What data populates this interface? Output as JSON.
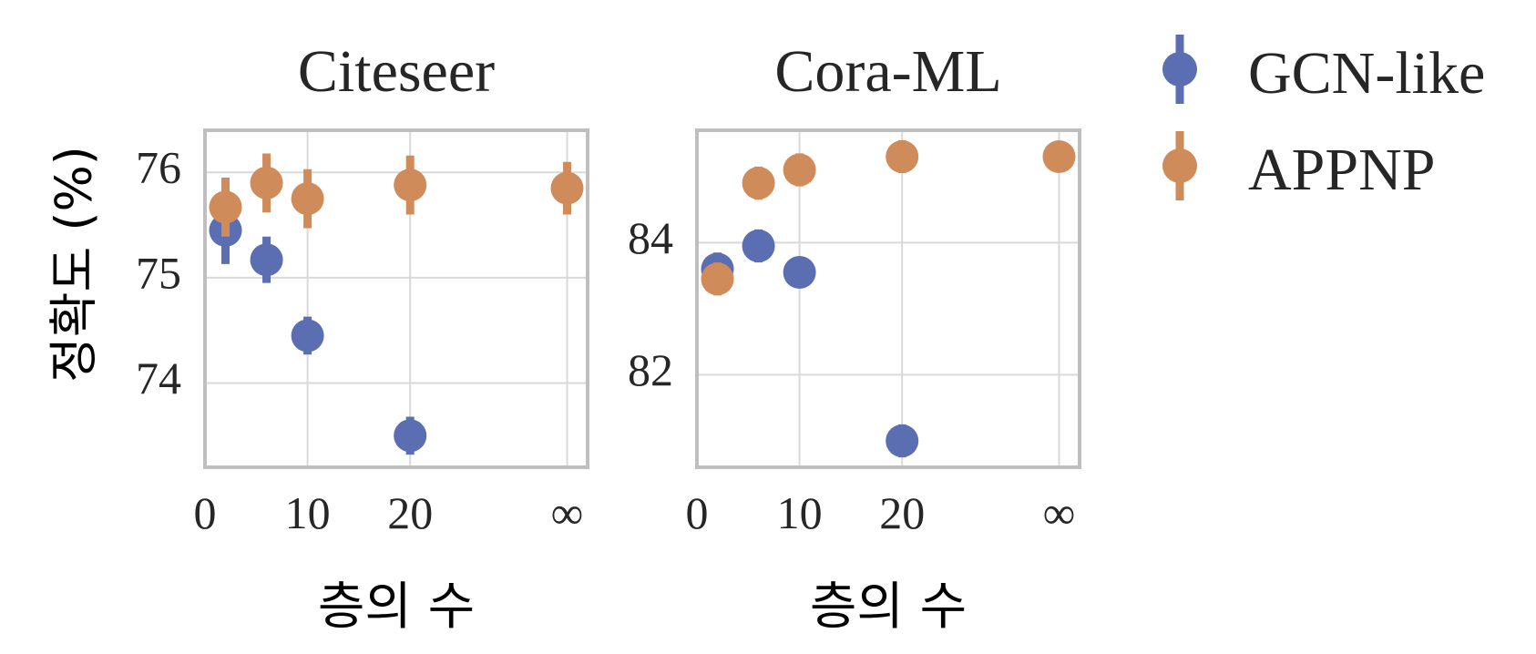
{
  "chart_data": [
    {
      "type": "scatter",
      "title": "Citeseer",
      "xlabel": "층의 수",
      "ylabel": "정확도 (%)",
      "x_tick_labels": [
        "0",
        "10",
        "20",
        "∞"
      ],
      "y_tick_labels": [
        "74",
        "75",
        "76"
      ],
      "ylim": [
        73.2,
        76.4
      ],
      "grid": true,
      "series": [
        {
          "name": "GCN-like",
          "x": [
            2,
            6,
            10,
            20
          ],
          "y": [
            75.45,
            75.17,
            74.45,
            73.5
          ],
          "error": [
            0.32,
            0.22,
            0.18,
            0.18
          ]
        },
        {
          "name": "APPNP",
          "x": [
            2,
            6,
            10,
            20,
            "∞"
          ],
          "y": [
            75.67,
            75.9,
            75.75,
            75.88,
            75.85
          ],
          "error": [
            0.28,
            0.28,
            0.28,
            0.28,
            0.25
          ]
        }
      ]
    },
    {
      "type": "scatter",
      "title": "Cora-ML",
      "xlabel": "층의 수",
      "ylabel": "",
      "x_tick_labels": [
        "0",
        "10",
        "20",
        "∞"
      ],
      "y_tick_labels": [
        "82",
        "84"
      ],
      "ylim": [
        80.6,
        85.7
      ],
      "grid": true,
      "series": [
        {
          "name": "GCN-like",
          "x": [
            2,
            6,
            10,
            20
          ],
          "y": [
            83.6,
            83.95,
            83.55,
            81.0
          ],
          "error": [
            0.25,
            0.25,
            0.15,
            0.25
          ]
        },
        {
          "name": "APPNP",
          "x": [
            2,
            6,
            10,
            20,
            "∞"
          ],
          "y": [
            83.45,
            84.9,
            85.1,
            85.3,
            85.3
          ],
          "error": [
            0.25,
            0.25,
            0.25,
            0.25,
            0.2
          ]
        }
      ]
    }
  ],
  "legend": {
    "position": "top-right",
    "entries": [
      {
        "label": "GCN-like",
        "color": "#5a6eb1"
      },
      {
        "label": "APPNP",
        "color": "#cf8b5a"
      }
    ]
  },
  "colors": {
    "gcn": "#5a6eb1",
    "appnp": "#cf8b5a",
    "frame": "#bfbfbf",
    "grid": "#d9d9d9",
    "text": "#262626"
  }
}
